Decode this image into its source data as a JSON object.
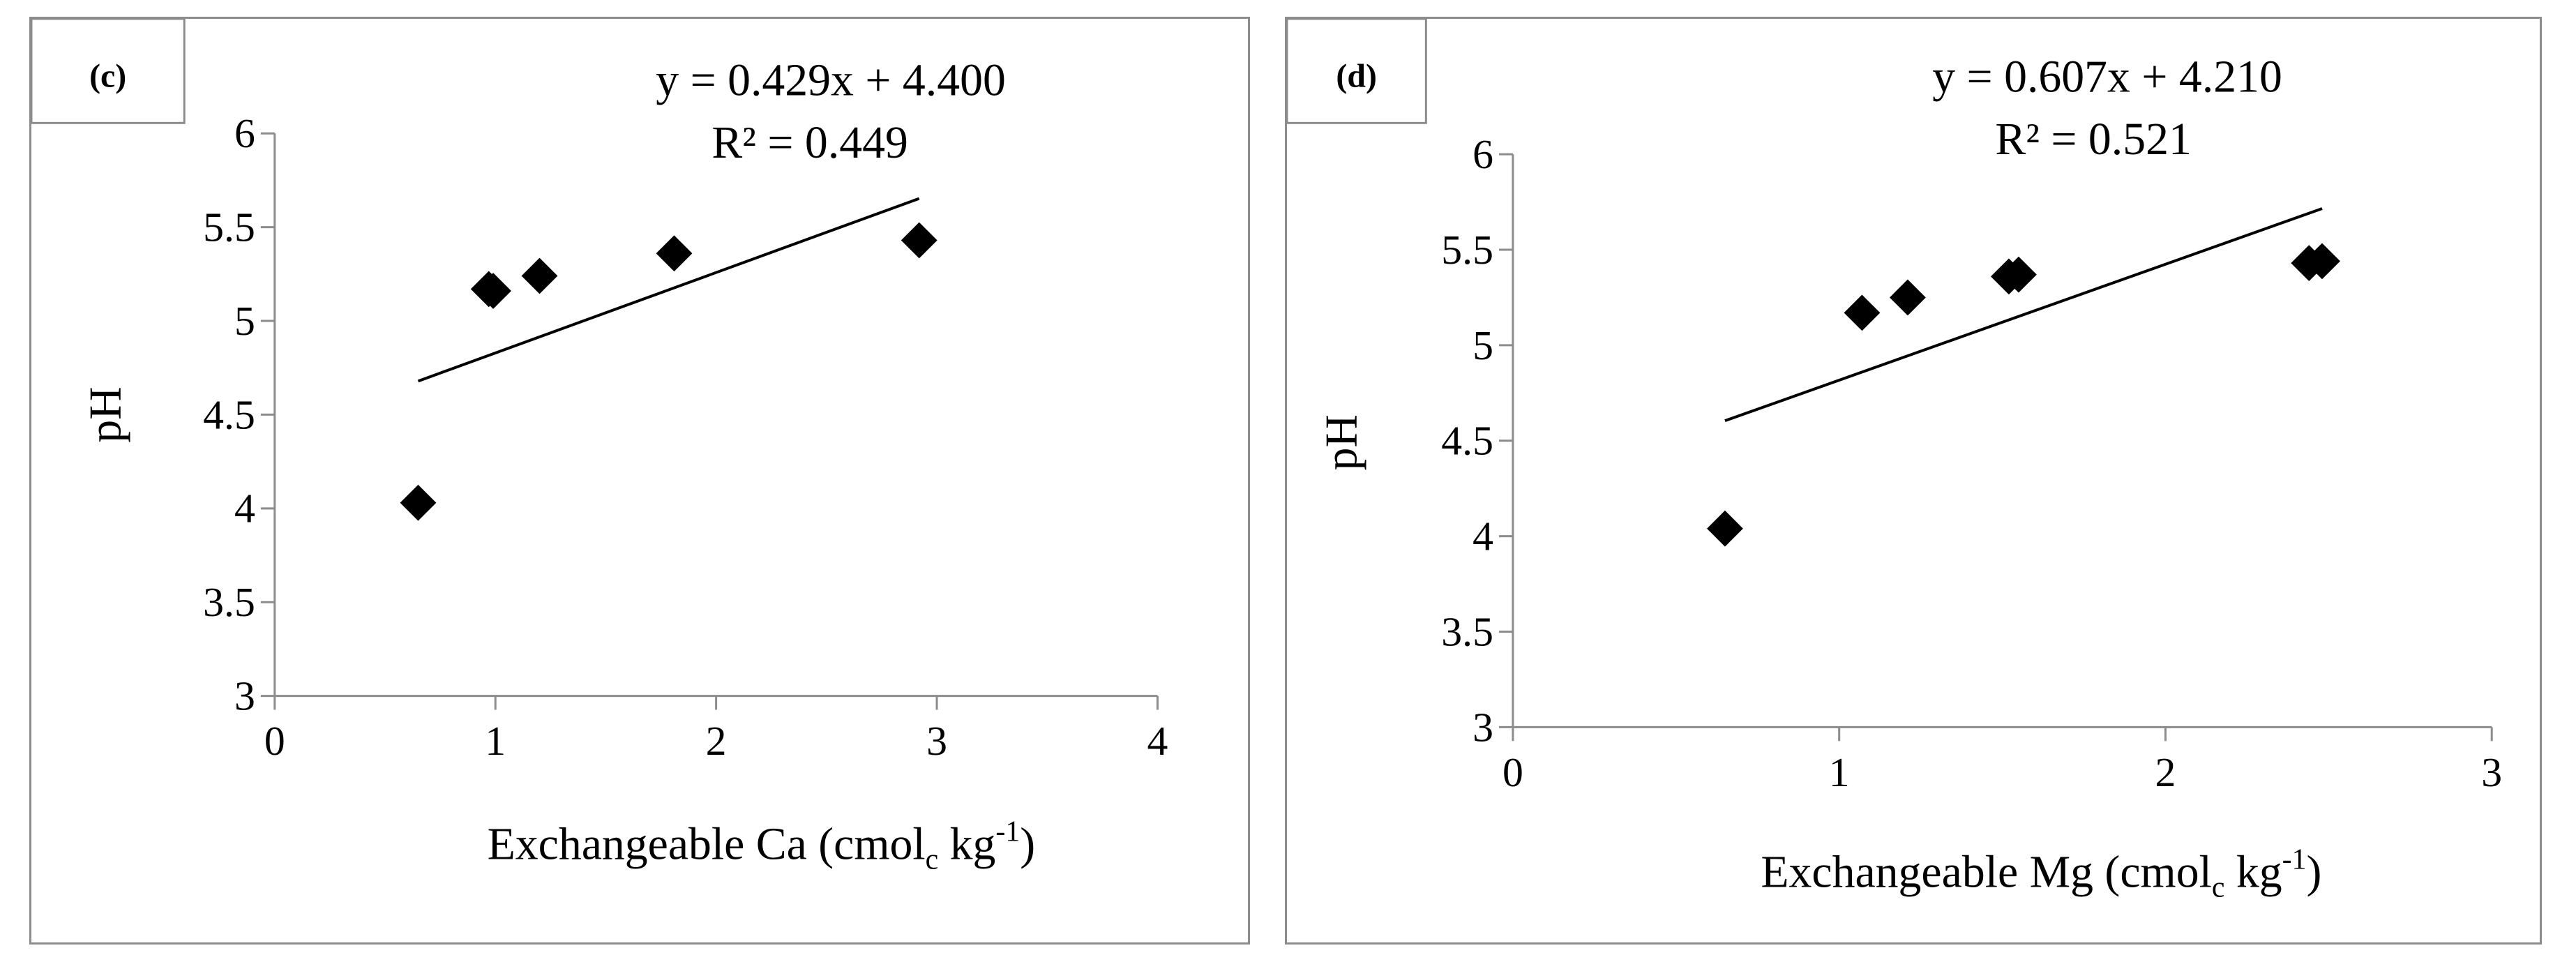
{
  "chart_data": [
    {
      "type": "scatter",
      "panel_label": "(c)",
      "xlabel_main": "Exchangeable  Ca (cmol",
      "xlabel_sub": "c",
      "xlabel_unit": " kg",
      "xlabel_sup": "-1",
      "xlabel_end": ")",
      "ylabel": "pH",
      "xlim": [
        0,
        4
      ],
      "ylim": [
        3,
        6
      ],
      "xticks": [
        0,
        1,
        2,
        3,
        4
      ],
      "yticks": [
        3,
        3.5,
        4,
        4.5,
        5,
        5.5,
        6
      ],
      "xtick_labels": [
        "0",
        "1",
        "2",
        "3",
        "4"
      ],
      "ytick_labels": [
        "3",
        "3.5",
        "4",
        "4.5",
        "5",
        "5.5",
        "6"
      ],
      "series": [
        {
          "points": [
            [
              0.65,
              4.03
            ],
            [
              0.97,
              5.17
            ],
            [
              0.99,
              5.16
            ],
            [
              1.2,
              5.24
            ],
            [
              1.81,
              5.36
            ],
            [
              2.92,
              5.43
            ]
          ]
        }
      ],
      "trendline": {
        "slope": 0.429,
        "intercept": 4.4,
        "x_range": [
          0.65,
          2.92
        ]
      },
      "equation": "y = 0.429x + 4.400",
      "r_squared": "R² = 0.449",
      "grid": false,
      "legend": "none"
    },
    {
      "type": "scatter",
      "panel_label": "(d)",
      "xlabel_main": "Exchangeable Mg (cmol",
      "xlabel_sub": "c",
      "xlabel_unit": "  kg",
      "xlabel_sup": "-1",
      "xlabel_end": ")",
      "ylabel": "pH",
      "xlim": [
        0,
        3
      ],
      "ylim": [
        3,
        6
      ],
      "xticks": [
        0,
        1,
        2,
        3
      ],
      "yticks": [
        3,
        3.5,
        4,
        4.5,
        5,
        5.5,
        6
      ],
      "xtick_labels": [
        "0",
        "1",
        "2",
        "3"
      ],
      "ytick_labels": [
        "3",
        "3.5",
        "4",
        "4.5",
        "5",
        "5.5",
        "6"
      ],
      "series": [
        {
          "points": [
            [
              0.65,
              4.04
            ],
            [
              1.07,
              5.17
            ],
            [
              1.21,
              5.25
            ],
            [
              1.52,
              5.36
            ],
            [
              1.55,
              5.37
            ],
            [
              2.44,
              5.43
            ],
            [
              2.48,
              5.44
            ]
          ]
        }
      ],
      "trendline": {
        "slope": 0.607,
        "intercept": 4.21,
        "x_range": [
          0.65,
          2.48
        ]
      },
      "equation": "y = 0.607x + 4.210",
      "r_squared": "R² = 0.521",
      "grid": false,
      "legend": "none"
    }
  ]
}
